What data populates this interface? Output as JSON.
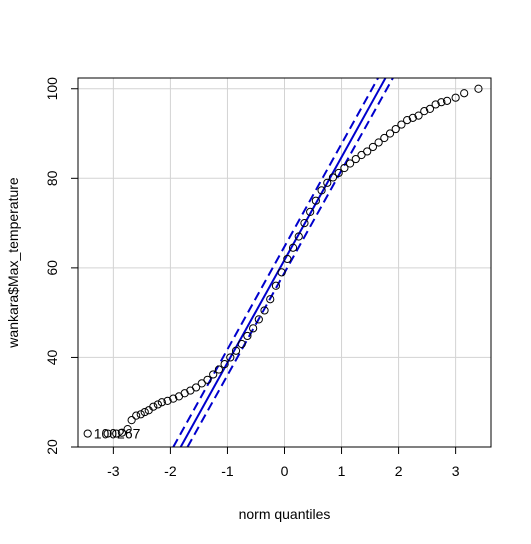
{
  "chart_data": {
    "type": "scatter",
    "subtype": "qq-plot",
    "title": "",
    "xlabel": "norm quantiles",
    "ylabel": "wankara$Max_temperature",
    "xlim": [
      -3.62,
      3.62
    ],
    "ylim": [
      20,
      102.4
    ],
    "x_ticks": [
      -3,
      -2,
      -1,
      0,
      1,
      2,
      3
    ],
    "x_tick_labels": [
      "-3",
      "-2",
      "-1",
      "0",
      "1",
      "2",
      "3"
    ],
    "y_ticks": [
      20,
      40,
      60,
      80,
      100
    ],
    "y_tick_labels": [
      "20",
      "40",
      "60",
      "80",
      "100"
    ],
    "grid": true,
    "series": [
      {
        "kind": "points",
        "color": "#000000",
        "marker": "open-circle",
        "points": [
          [
            -3.45,
            23.0
          ],
          [
            -3.1,
            23.0
          ],
          [
            -2.95,
            23.0
          ],
          [
            -2.85,
            23.2
          ],
          [
            -2.75,
            24.0
          ],
          [
            -2.68,
            26.0
          ],
          [
            -2.6,
            27.0
          ],
          [
            -2.52,
            27.3
          ],
          [
            -2.45,
            27.8
          ],
          [
            -2.38,
            28.2
          ],
          [
            -2.3,
            29.0
          ],
          [
            -2.22,
            29.5
          ],
          [
            -2.15,
            30.0
          ],
          [
            -2.05,
            30.3
          ],
          [
            -1.95,
            30.8
          ],
          [
            -1.85,
            31.3
          ],
          [
            -1.75,
            32.0
          ],
          [
            -1.65,
            32.6
          ],
          [
            -1.55,
            33.3
          ],
          [
            -1.45,
            34.2
          ],
          [
            -1.35,
            35.0
          ],
          [
            -1.25,
            36.2
          ],
          [
            -1.15,
            37.3
          ],
          [
            -1.05,
            38.5
          ],
          [
            -0.95,
            40.0
          ],
          [
            -0.85,
            41.5
          ],
          [
            -0.75,
            43.0
          ],
          [
            -0.65,
            44.8
          ],
          [
            -0.55,
            46.5
          ],
          [
            -0.45,
            48.5
          ],
          [
            -0.35,
            50.5
          ],
          [
            -0.25,
            53.0
          ],
          [
            -0.15,
            56.0
          ],
          [
            -0.05,
            59.0
          ],
          [
            0.05,
            62.0
          ],
          [
            0.15,
            64.5
          ],
          [
            0.25,
            67.0
          ],
          [
            0.35,
            70.0
          ],
          [
            0.45,
            72.5
          ],
          [
            0.55,
            75.0
          ],
          [
            0.65,
            77.3
          ],
          [
            0.75,
            79.0
          ],
          [
            0.85,
            80.2
          ],
          [
            0.95,
            81.2
          ],
          [
            1.05,
            82.3
          ],
          [
            1.15,
            83.3
          ],
          [
            1.25,
            84.3
          ],
          [
            1.35,
            85.2
          ],
          [
            1.45,
            86.0
          ],
          [
            1.55,
            87.0
          ],
          [
            1.65,
            88.0
          ],
          [
            1.75,
            89.0
          ],
          [
            1.85,
            90.0
          ],
          [
            1.95,
            91.0
          ],
          [
            2.05,
            92.0
          ],
          [
            2.15,
            93.0
          ],
          [
            2.25,
            93.5
          ],
          [
            2.35,
            94.0
          ],
          [
            2.45,
            95.0
          ],
          [
            2.55,
            95.5
          ],
          [
            2.65,
            96.5
          ],
          [
            2.75,
            97.0
          ],
          [
            2.85,
            97.3
          ],
          [
            3.0,
            98.0
          ],
          [
            3.15,
            99.0
          ],
          [
            3.4,
            100.0
          ]
        ]
      },
      {
        "kind": "line",
        "name": "",
        "color": "#0000cd",
        "style": "solid",
        "points": [
          [
            -1.82,
            20.0
          ],
          [
            1.77,
            102.4
          ]
        ]
      },
      {
        "kind": "line",
        "name": "",
        "color": "#0000cd",
        "style": "dashed",
        "points": [
          [
            -1.95,
            20.0
          ],
          [
            1.64,
            102.4
          ]
        ]
      },
      {
        "kind": "line",
        "name": "",
        "color": "#0000cd",
        "style": "dashed",
        "points": [
          [
            -1.7,
            20.0
          ],
          [
            1.9,
            102.4
          ]
        ]
      }
    ],
    "annotations": [
      {
        "text": "100267",
        "x": -3.45,
        "y": 23.0
      }
    ]
  }
}
